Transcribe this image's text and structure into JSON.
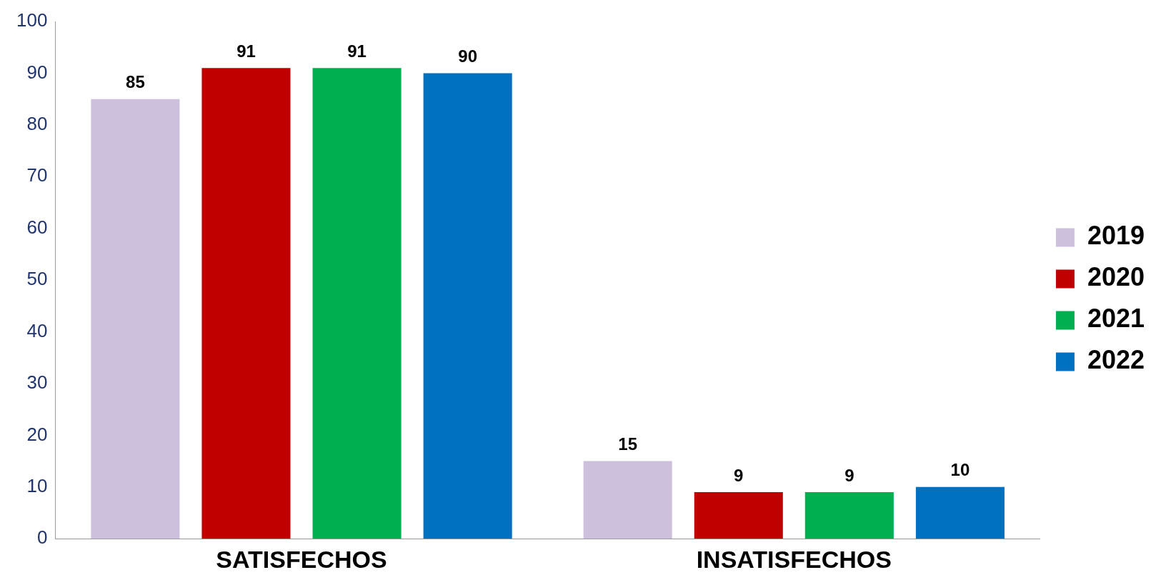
{
  "chart_data": {
    "type": "bar",
    "categories": [
      "SATISFECHOS",
      "INSATISFECHOS"
    ],
    "series": [
      {
        "name": "2019",
        "color": "#cdc0dc",
        "values": [
          85,
          15
        ]
      },
      {
        "name": "2020",
        "color": "#c00000",
        "values": [
          91,
          9
        ]
      },
      {
        "name": "2021",
        "color": "#00b050",
        "values": [
          91,
          9
        ]
      },
      {
        "name": "2022",
        "color": "#0070c0",
        "values": [
          90,
          10
        ]
      }
    ],
    "ylim": [
      0,
      100
    ],
    "yticks": [
      0,
      10,
      20,
      30,
      40,
      50,
      60,
      70,
      80,
      90,
      100
    ],
    "grid": false,
    "legend": "right",
    "data_labels": true
  }
}
